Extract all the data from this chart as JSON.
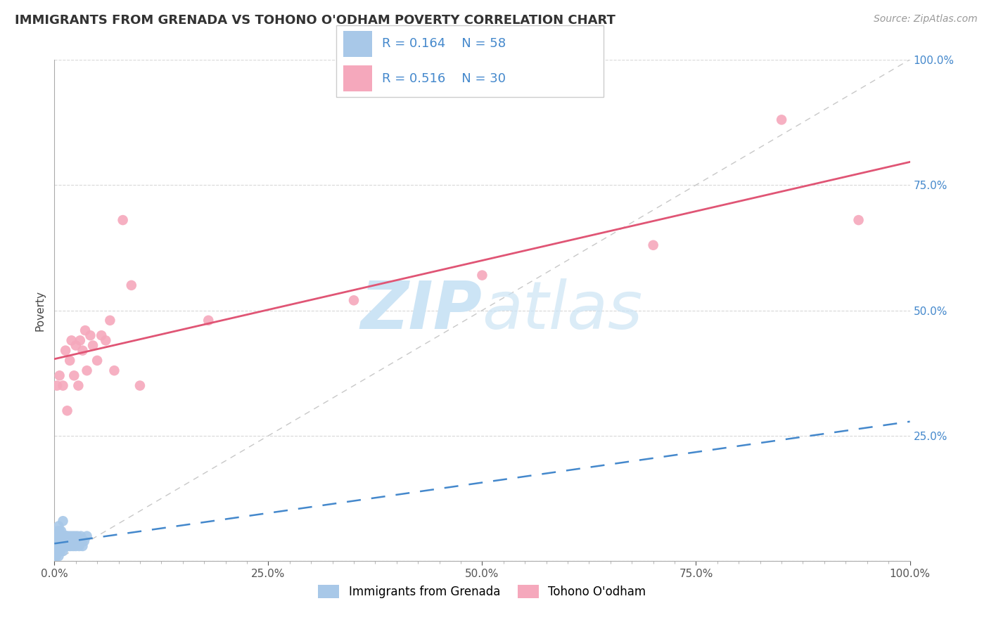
{
  "title": "IMMIGRANTS FROM GRENADA VS TOHONO O'ODHAM POVERTY CORRELATION CHART",
  "source": "Source: ZipAtlas.com",
  "ylabel": "Poverty",
  "blue_R": 0.164,
  "blue_N": 58,
  "pink_R": 0.516,
  "pink_N": 30,
  "blue_color": "#a8c8e8",
  "pink_color": "#f5a8bc",
  "blue_line_color": "#4488cc",
  "pink_line_color": "#e05575",
  "legend_label_blue": "Immigrants from Grenada",
  "legend_label_pink": "Tohono O'odham",
  "legend_text_color": "#4488cc",
  "title_color": "#333333",
  "source_color": "#999999",
  "watermark_color": "#cce4f5",
  "blue_scatter_x": [
    0.001,
    0.001,
    0.002,
    0.002,
    0.002,
    0.003,
    0.003,
    0.003,
    0.004,
    0.004,
    0.004,
    0.005,
    0.005,
    0.005,
    0.005,
    0.006,
    0.006,
    0.006,
    0.007,
    0.007,
    0.007,
    0.008,
    0.008,
    0.009,
    0.009,
    0.01,
    0.01,
    0.01,
    0.011,
    0.011,
    0.012,
    0.012,
    0.013,
    0.013,
    0.014,
    0.014,
    0.015,
    0.015,
    0.016,
    0.017,
    0.018,
    0.019,
    0.02,
    0.021,
    0.022,
    0.023,
    0.024,
    0.025,
    0.026,
    0.027,
    0.028,
    0.029,
    0.03,
    0.031,
    0.032,
    0.033,
    0.035,
    0.038
  ],
  "blue_scatter_y": [
    0.01,
    0.02,
    0.01,
    0.03,
    0.04,
    0.02,
    0.03,
    0.05,
    0.02,
    0.04,
    0.06,
    0.01,
    0.03,
    0.05,
    0.07,
    0.02,
    0.04,
    0.06,
    0.03,
    0.05,
    0.02,
    0.04,
    0.06,
    0.03,
    0.05,
    0.02,
    0.04,
    0.08,
    0.03,
    0.05,
    0.03,
    0.05,
    0.03,
    0.05,
    0.03,
    0.05,
    0.03,
    0.05,
    0.04,
    0.03,
    0.05,
    0.03,
    0.04,
    0.05,
    0.03,
    0.04,
    0.05,
    0.03,
    0.04,
    0.05,
    0.04,
    0.03,
    0.04,
    0.05,
    0.04,
    0.03,
    0.04,
    0.05
  ],
  "pink_scatter_x": [
    0.003,
    0.006,
    0.01,
    0.013,
    0.015,
    0.018,
    0.02,
    0.023,
    0.025,
    0.028,
    0.03,
    0.033,
    0.036,
    0.038,
    0.042,
    0.045,
    0.05,
    0.055,
    0.06,
    0.065,
    0.07,
    0.08,
    0.09,
    0.1,
    0.18,
    0.35,
    0.5,
    0.7,
    0.85,
    0.94
  ],
  "pink_scatter_y": [
    0.35,
    0.37,
    0.35,
    0.42,
    0.3,
    0.4,
    0.44,
    0.37,
    0.43,
    0.35,
    0.44,
    0.42,
    0.46,
    0.38,
    0.45,
    0.43,
    0.4,
    0.45,
    0.44,
    0.48,
    0.38,
    0.68,
    0.55,
    0.35,
    0.48,
    0.52,
    0.57,
    0.63,
    0.88,
    0.68
  ],
  "xlim": [
    0.0,
    1.0
  ],
  "ylim": [
    0.0,
    1.0
  ],
  "ref_line_color": "#c8c8c8",
  "grid_color": "#d8d8d8",
  "axis_color": "#aaaaaa"
}
